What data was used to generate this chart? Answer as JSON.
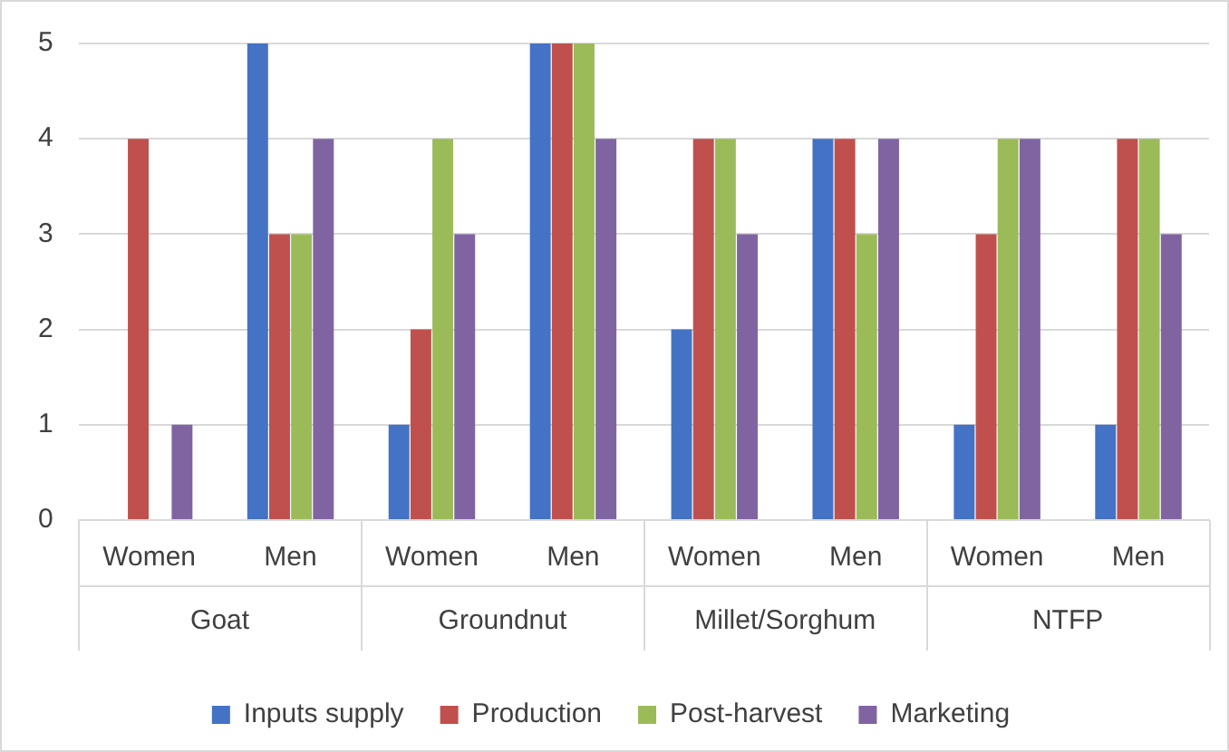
{
  "chart_data": {
    "type": "bar",
    "categories": [
      "Women",
      "Men",
      "Women",
      "Men",
      "Women",
      "Men",
      "Women",
      "Men"
    ],
    "annotations": [
      "Goat",
      "Groundnut",
      "Millet/Sorghum",
      "NTFP"
    ],
    "series": [
      {
        "name": "Inputs supply",
        "color": "#4472c4",
        "values": [
          0,
          5,
          1,
          5,
          2,
          4,
          1,
          1
        ]
      },
      {
        "name": "Production",
        "color": "#c0504d",
        "values": [
          4,
          3,
          2,
          5,
          4,
          4,
          3,
          4
        ]
      },
      {
        "name": "Post-harvest",
        "color": "#9bbb59",
        "values": [
          0,
          3,
          4,
          5,
          4,
          3,
          4,
          4
        ]
      },
      {
        "name": "Marketing",
        "color": "#8064a2",
        "values": [
          1,
          4,
          3,
          4,
          3,
          4,
          4,
          3
        ]
      }
    ],
    "ylim": [
      0,
      5
    ],
    "yticks": [
      0,
      1,
      2,
      3,
      4,
      5
    ],
    "grid": "y",
    "legend": "bottom"
  }
}
